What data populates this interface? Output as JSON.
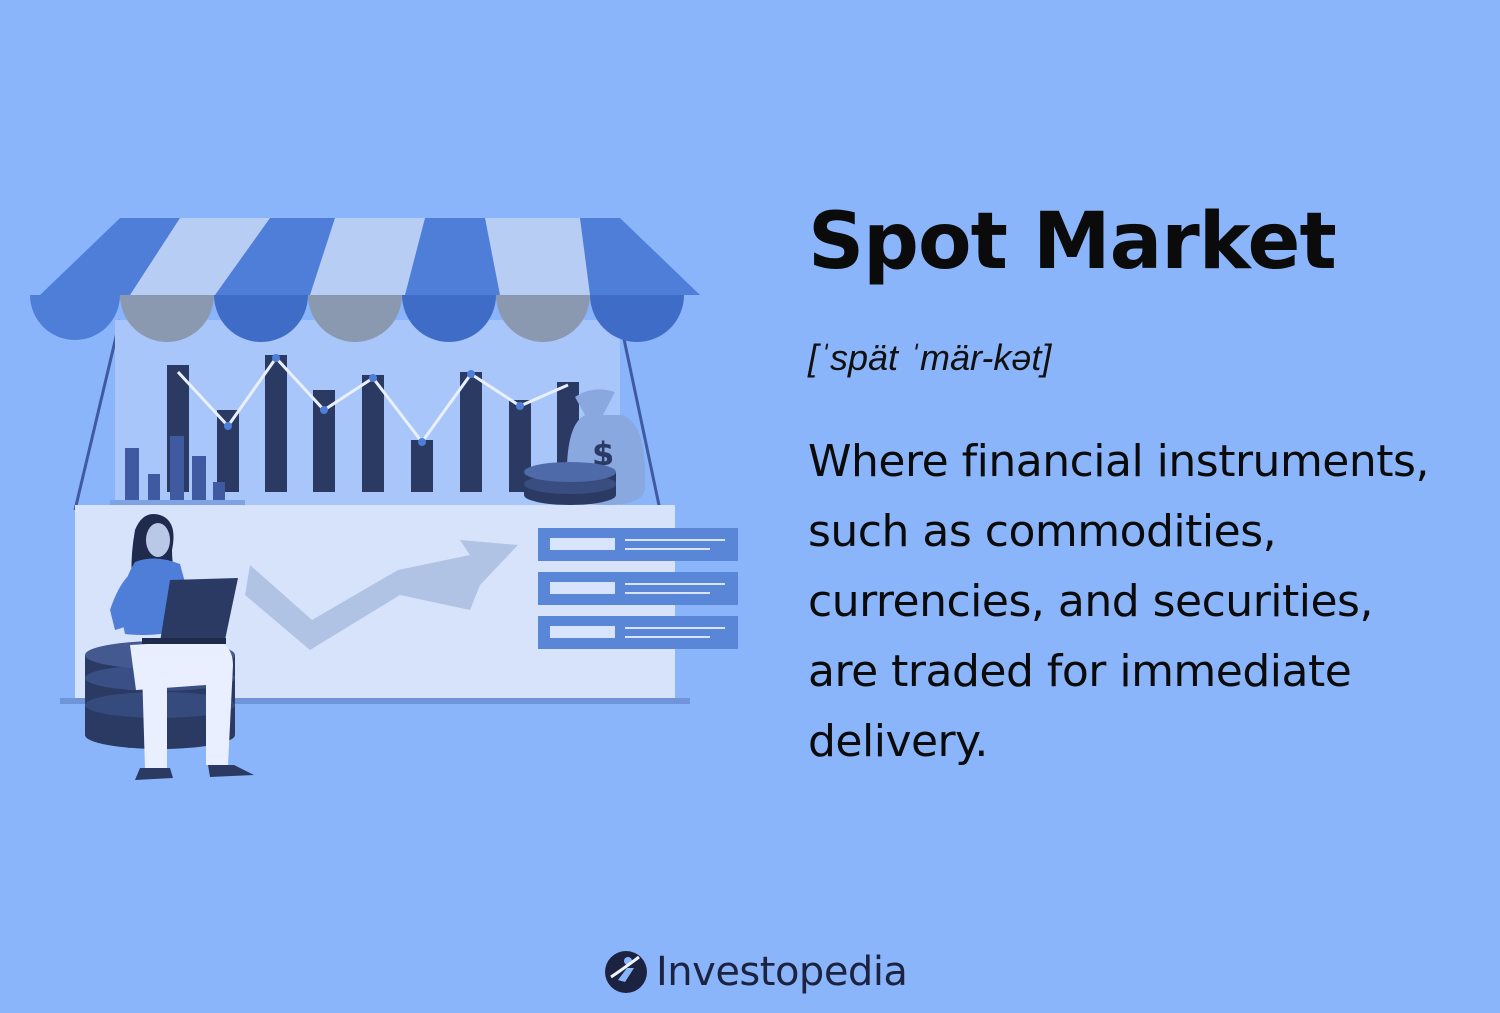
{
  "term": {
    "title": "Spot Market",
    "pronunciation": "[ˈspät ˈmär-kət]",
    "definition": "Where financial instruments, such as commodities, currencies, and securities, are traded for immediate delivery."
  },
  "brand": {
    "name": "Investopedia",
    "logo_icon": "investopedia-logo-icon"
  },
  "illustration": {
    "icon": "market-stall-illustration",
    "currency_symbol": "$"
  },
  "colors": {
    "background": "#8bb5fb",
    "text": "#0b0b0b",
    "navy": "#2a3a63",
    "awning_blue": "#4f7ed8",
    "awning_light": "#b8cdf3"
  }
}
